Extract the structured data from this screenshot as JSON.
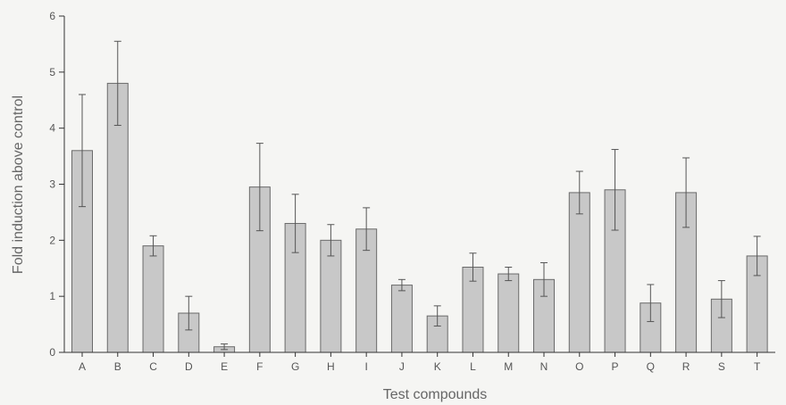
{
  "chart_data": {
    "type": "bar",
    "title": "",
    "xlabel": "Test compounds",
    "ylabel": "Fold induction above control",
    "ylim": [
      0,
      6
    ],
    "yticks": [
      0,
      1,
      2,
      3,
      4,
      5,
      6
    ],
    "grid": false,
    "categories": [
      "A",
      "B",
      "C",
      "D",
      "E",
      "F",
      "G",
      "H",
      "I",
      "J",
      "K",
      "L",
      "M",
      "N",
      "O",
      "P",
      "Q",
      "R",
      "S",
      "T"
    ],
    "values": [
      3.6,
      4.8,
      1.9,
      0.7,
      0.1,
      2.95,
      2.3,
      2.0,
      2.2,
      1.2,
      0.65,
      1.52,
      1.4,
      1.3,
      2.85,
      2.9,
      0.88,
      2.85,
      0.95,
      1.72
    ],
    "error": [
      1.0,
      0.75,
      0.18,
      0.3,
      0.05,
      0.78,
      0.52,
      0.28,
      0.38,
      0.1,
      0.18,
      0.25,
      0.12,
      0.3,
      0.38,
      0.72,
      0.33,
      0.62,
      0.33,
      0.35
    ],
    "colors": {
      "bar_fill": "#c8c8c8",
      "bar_stroke": "#6a6a6a",
      "axis": "#333333",
      "error_bar": "#555555"
    }
  }
}
